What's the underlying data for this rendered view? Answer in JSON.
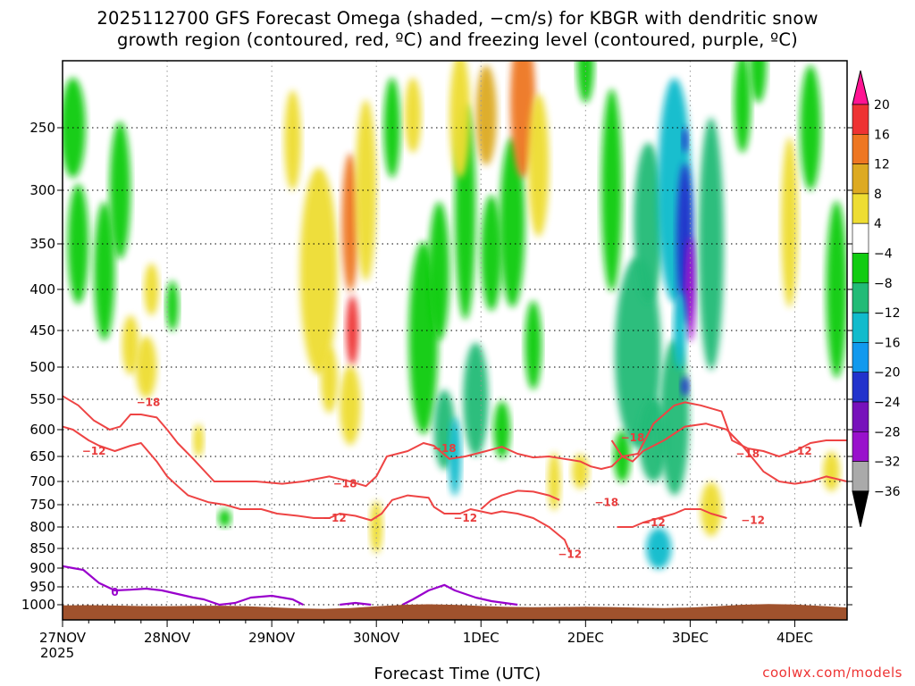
{
  "chart_data": {
    "type": "heatmap",
    "title_line1": "2025112700 GFS Forecast Omega (shaded, −cm/s) for KBGR with dendritic snow",
    "title_line2": "growth region (contoured, red, ºC) and freezing level (contoured, purple, ºC)",
    "xlabel": "Forecast Time (UTC)",
    "ylabel": "",
    "x_ticks": [
      "27NOV",
      "28NOV",
      "29NOV",
      "30NOV",
      "1DEC",
      "2DEC",
      "3DEC",
      "4DEC"
    ],
    "x_year": "2025",
    "x_range_days": [
      0,
      7.5
    ],
    "y_axis": "pressure (hPa), inverted",
    "y_ticks": [
      250,
      300,
      350,
      400,
      450,
      500,
      550,
      600,
      650,
      700,
      750,
      800,
      850,
      900,
      950,
      1000
    ],
    "y_range": [
      200,
      1030
    ],
    "grid": true,
    "colorbar": {
      "ticks": [
        "20",
        "16",
        "12",
        "8",
        "4",
        "−4",
        "−8",
        "−12",
        "−16",
        "−20",
        "−24",
        "−28",
        "−32",
        "−36"
      ],
      "colors": [
        "#ff1493",
        "#ee3333",
        "#ee7722",
        "#ddaa22",
        "#eedd33",
        "#ffffff",
        "#11cc11",
        "#22bb77",
        "#11bbcc",
        "#1199ee",
        "#2233cc",
        "#7711bb",
        "#9911cc",
        "#aaaaaa",
        "#000000"
      ]
    },
    "contour_labels_red": [
      "−18",
      "−12",
      "−18",
      "−12",
      "−18",
      "−12",
      "−12",
      "−18",
      "−12",
      "−18",
      "−12",
      "−18",
      "−12"
    ],
    "contour_labels_purple": [
      "0"
    ],
    "shading_blobs": [
      {
        "day": 0.1,
        "p": 250,
        "w": 0.12,
        "h": 80,
        "v": -6
      },
      {
        "day": 0.15,
        "p": 350,
        "w": 0.1,
        "h": 120,
        "v": -6
      },
      {
        "day": 0.4,
        "p": 380,
        "w": 0.1,
        "h": 150,
        "v": -6
      },
      {
        "day": 0.55,
        "p": 300,
        "w": 0.1,
        "h": 120,
        "v": -5
      },
      {
        "day": 0.65,
        "p": 470,
        "w": 0.08,
        "h": 80,
        "v": 6
      },
      {
        "day": 0.8,
        "p": 500,
        "w": 0.1,
        "h": 90,
        "v": 5
      },
      {
        "day": 0.85,
        "p": 400,
        "w": 0.07,
        "h": 60,
        "v": 5
      },
      {
        "day": 1.05,
        "p": 420,
        "w": 0.06,
        "h": 60,
        "v": -5
      },
      {
        "day": 1.3,
        "p": 620,
        "w": 0.05,
        "h": 60,
        "v": 5
      },
      {
        "day": 1.55,
        "p": 780,
        "w": 0.06,
        "h": 40,
        "v": -5
      },
      {
        "day": 2.2,
        "p": 260,
        "w": 0.08,
        "h": 80,
        "v": 5
      },
      {
        "day": 2.45,
        "p": 380,
        "w": 0.18,
        "h": 220,
        "v": 6
      },
      {
        "day": 2.55,
        "p": 520,
        "w": 0.08,
        "h": 100,
        "v": 6
      },
      {
        "day": 2.75,
        "p": 330,
        "w": 0.08,
        "h": 130,
        "v": 14
      },
      {
        "day": 2.77,
        "p": 450,
        "w": 0.06,
        "h": 90,
        "v": 18
      },
      {
        "day": 2.75,
        "p": 560,
        "w": 0.1,
        "h": 130,
        "v": 7
      },
      {
        "day": 2.9,
        "p": 300,
        "w": 0.1,
        "h": 160,
        "v": 7
      },
      {
        "day": 3.0,
        "p": 800,
        "w": 0.06,
        "h": 120,
        "v": 6
      },
      {
        "day": 3.15,
        "p": 250,
        "w": 0.08,
        "h": 80,
        "v": -5
      },
      {
        "day": 3.35,
        "p": 240,
        "w": 0.08,
        "h": 60,
        "v": 6
      },
      {
        "day": 3.45,
        "p": 460,
        "w": 0.14,
        "h": 250,
        "v": -6
      },
      {
        "day": 3.6,
        "p": 380,
        "w": 0.1,
        "h": 150,
        "v": -7
      },
      {
        "day": 3.65,
        "p": 600,
        "w": 0.1,
        "h": 140,
        "v": -10
      },
      {
        "day": 3.75,
        "p": 650,
        "w": 0.06,
        "h": 150,
        "v": -14
      },
      {
        "day": 3.85,
        "p": 320,
        "w": 0.1,
        "h": 200,
        "v": -6
      },
      {
        "day": 3.95,
        "p": 550,
        "w": 0.12,
        "h": 180,
        "v": -8
      },
      {
        "day": 3.8,
        "p": 240,
        "w": 0.1,
        "h": 100,
        "v": 7
      },
      {
        "day": 4.05,
        "p": 240,
        "w": 0.1,
        "h": 80,
        "v": 9
      },
      {
        "day": 4.1,
        "p": 360,
        "w": 0.1,
        "h": 120,
        "v": -6
      },
      {
        "day": 4.3,
        "p": 330,
        "w": 0.12,
        "h": 160,
        "v": -6
      },
      {
        "day": 4.4,
        "p": 230,
        "w": 0.12,
        "h": 120,
        "v": 13
      },
      {
        "day": 4.55,
        "p": 280,
        "w": 0.1,
        "h": 120,
        "v": 6
      },
      {
        "day": 4.5,
        "p": 470,
        "w": 0.08,
        "h": 120,
        "v": -6
      },
      {
        "day": 4.7,
        "p": 700,
        "w": 0.06,
        "h": 120,
        "v": 6
      },
      {
        "day": 4.95,
        "p": 680,
        "w": 0.08,
        "h": 70,
        "v": 6
      },
      {
        "day": 4.2,
        "p": 600,
        "w": 0.08,
        "h": 100,
        "v": -7
      },
      {
        "day": 5.0,
        "p": 200,
        "w": 0.08,
        "h": 60,
        "v": -6
      },
      {
        "day": 5.25,
        "p": 300,
        "w": 0.1,
        "h": 180,
        "v": -6
      },
      {
        "day": 5.35,
        "p": 650,
        "w": 0.08,
        "h": 100,
        "v": -6
      },
      {
        "day": 5.5,
        "p": 480,
        "w": 0.22,
        "h": 260,
        "v": -9
      },
      {
        "day": 5.6,
        "p": 330,
        "w": 0.14,
        "h": 150,
        "v": -8
      },
      {
        "day": 5.65,
        "p": 620,
        "w": 0.14,
        "h": 150,
        "v": -10
      },
      {
        "day": 5.7,
        "p": 850,
        "w": 0.12,
        "h": 100,
        "v": -12
      },
      {
        "day": 5.85,
        "p": 300,
        "w": 0.16,
        "h": 200,
        "v": -12
      },
      {
        "day": 5.85,
        "p": 580,
        "w": 0.14,
        "h": 260,
        "v": -10
      },
      {
        "day": 5.95,
        "p": 350,
        "w": 0.08,
        "h": 160,
        "v": -20
      },
      {
        "day": 6.0,
        "p": 400,
        "w": 0.05,
        "h": 120,
        "v": -30
      },
      {
        "day": 5.95,
        "p": 260,
        "w": 0.03,
        "h": 20,
        "v": -22
      },
      {
        "day": 5.9,
        "p": 450,
        "w": 0.06,
        "h": 100,
        "v": -15
      },
      {
        "day": 5.95,
        "p": 530,
        "w": 0.04,
        "h": 30,
        "v": -22
      },
      {
        "day": 6.2,
        "p": 350,
        "w": 0.12,
        "h": 250,
        "v": -8
      },
      {
        "day": 6.2,
        "p": 760,
        "w": 0.1,
        "h": 120,
        "v": 6
      },
      {
        "day": 6.5,
        "p": 230,
        "w": 0.08,
        "h": 80,
        "v": -6
      },
      {
        "day": 6.65,
        "p": 200,
        "w": 0.08,
        "h": 60,
        "v": -6
      },
      {
        "day": 6.95,
        "p": 330,
        "w": 0.08,
        "h": 160,
        "v": 7
      },
      {
        "day": 7.15,
        "p": 250,
        "w": 0.1,
        "h": 100,
        "v": -6
      },
      {
        "day": 7.4,
        "p": 400,
        "w": 0.1,
        "h": 200,
        "v": -7
      },
      {
        "day": 7.35,
        "p": 680,
        "w": 0.08,
        "h": 80,
        "v": 5
      }
    ],
    "series": [
      {
        "points": [
          [
            0,
            545
          ],
          [
            0.15,
            560
          ],
          [
            0.3,
            585
          ],
          [
            0.45,
            600
          ],
          [
            0.55,
            595
          ],
          [
            0.65,
            575
          ],
          [
            0.75,
            575
          ],
          [
            0.9,
            580
          ],
          [
            1.0,
            600
          ],
          [
            1.1,
            625
          ],
          [
            1.25,
            655
          ],
          [
            1.45,
            700
          ],
          [
            1.6,
            700
          ],
          [
            1.85,
            700
          ],
          [
            2.1,
            705
          ],
          [
            2.3,
            700
          ],
          [
            2.55,
            690
          ],
          [
            2.75,
            700
          ],
          [
            2.9,
            710
          ],
          [
            3.0,
            690
          ],
          [
            3.1,
            650
          ],
          [
            3.3,
            640
          ],
          [
            3.45,
            625
          ],
          [
            3.55,
            630
          ],
          [
            3.7,
            655
          ],
          [
            3.85,
            650
          ],
          [
            4.05,
            640
          ],
          [
            4.2,
            632
          ],
          [
            4.35,
            645
          ],
          [
            4.5,
            652
          ],
          [
            4.65,
            650
          ],
          [
            4.8,
            655
          ],
          [
            4.95,
            660
          ],
          [
            5.05,
            670
          ],
          [
            5.15,
            675
          ],
          [
            5.25,
            670
          ],
          [
            5.35,
            650
          ],
          [
            5.5,
            645
          ],
          [
            5.65,
            590
          ],
          [
            5.85,
            560
          ],
          [
            5.95,
            555
          ],
          [
            6.1,
            560
          ],
          [
            6.3,
            570
          ],
          [
            6.4,
            620
          ],
          [
            6.55,
            635
          ],
          [
            6.7,
            640
          ],
          [
            6.85,
            650
          ],
          [
            7.0,
            640
          ],
          [
            7.15,
            625
          ],
          [
            7.3,
            620
          ],
          [
            7.5,
            620
          ]
        ]
      },
      {
        "points": [
          [
            0,
            595
          ],
          [
            0.1,
            600
          ],
          [
            0.25,
            620
          ],
          [
            0.35,
            630
          ],
          [
            0.5,
            640
          ],
          [
            0.65,
            630
          ],
          [
            0.75,
            625
          ],
          [
            0.9,
            660
          ],
          [
            1.0,
            690
          ],
          [
            1.1,
            710
          ],
          [
            1.2,
            730
          ],
          [
            1.4,
            745
          ],
          [
            1.55,
            750
          ],
          [
            1.7,
            760
          ],
          [
            1.9,
            760
          ],
          [
            2.05,
            770
          ],
          [
            2.25,
            775
          ],
          [
            2.4,
            780
          ],
          [
            2.55,
            780
          ],
          [
            2.65,
            770
          ],
          [
            2.8,
            775
          ],
          [
            2.95,
            785
          ],
          [
            3.05,
            770
          ],
          [
            3.15,
            740
          ],
          [
            3.3,
            730
          ],
          [
            3.5,
            735
          ],
          [
            3.55,
            755
          ],
          [
            3.65,
            770
          ],
          [
            3.8,
            770
          ],
          [
            3.9,
            760
          ],
          [
            4.0,
            765
          ],
          [
            4.1,
            770
          ],
          [
            4.2,
            765
          ],
          [
            4.35,
            770
          ],
          [
            4.5,
            780
          ],
          [
            4.65,
            800
          ],
          [
            4.8,
            830
          ],
          [
            4.85,
            860
          ]
        ]
      },
      {
        "points": [
          [
            4.0,
            760
          ],
          [
            4.1,
            740
          ],
          [
            4.2,
            730
          ],
          [
            4.35,
            720
          ],
          [
            4.5,
            722
          ],
          [
            4.65,
            730
          ],
          [
            4.75,
            740
          ]
        ]
      },
      {
        "points": [
          [
            5.25,
            620
          ],
          [
            5.35,
            650
          ],
          [
            5.45,
            660
          ],
          [
            5.55,
            640
          ],
          [
            5.75,
            620
          ],
          [
            5.95,
            595
          ],
          [
            6.15,
            590
          ],
          [
            6.35,
            600
          ],
          [
            6.5,
            630
          ],
          [
            6.7,
            680
          ],
          [
            6.85,
            700
          ],
          [
            7.0,
            705
          ],
          [
            7.15,
            700
          ],
          [
            7.3,
            690
          ],
          [
            7.5,
            700
          ]
        ]
      },
      {
        "points": [
          [
            5.3,
            800
          ],
          [
            5.45,
            800
          ],
          [
            5.55,
            790
          ],
          [
            5.7,
            780
          ],
          [
            5.85,
            770
          ],
          [
            5.95,
            760
          ],
          [
            6.1,
            760
          ],
          [
            6.2,
            770
          ],
          [
            6.35,
            780
          ]
        ]
      }
    ],
    "freezing_series": [
      {
        "points": [
          [
            0,
            895
          ],
          [
            0.1,
            900
          ],
          [
            0.2,
            905
          ],
          [
            0.35,
            940
          ],
          [
            0.5,
            960
          ],
          [
            0.65,
            958
          ],
          [
            0.8,
            955
          ],
          [
            0.95,
            960
          ],
          [
            1.1,
            970
          ],
          [
            1.25,
            980
          ],
          [
            1.35,
            985
          ],
          [
            1.5,
            1000
          ],
          [
            1.65,
            995
          ],
          [
            1.8,
            980
          ],
          [
            2.0,
            975
          ],
          [
            2.2,
            985
          ],
          [
            2.3,
            1000
          ]
        ]
      },
      {
        "points": [
          [
            2.65,
            1000
          ],
          [
            2.8,
            995
          ],
          [
            2.95,
            1000
          ]
        ]
      },
      {
        "points": [
          [
            3.25,
            1000
          ],
          [
            3.35,
            985
          ],
          [
            3.5,
            960
          ],
          [
            3.65,
            945
          ],
          [
            3.75,
            960
          ],
          [
            3.85,
            970
          ],
          [
            3.95,
            980
          ],
          [
            4.1,
            990
          ],
          [
            4.35,
            1000
          ]
        ]
      }
    ]
  }
}
